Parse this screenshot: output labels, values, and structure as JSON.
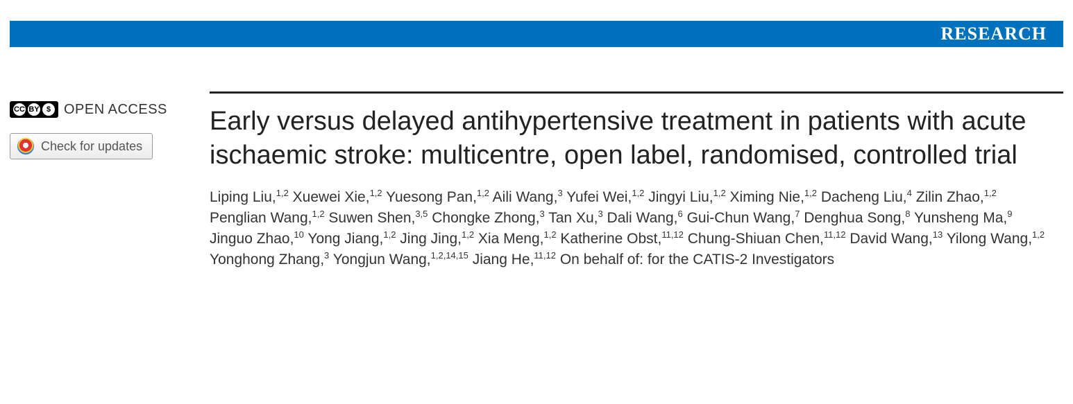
{
  "banner": {
    "label": "RESEARCH",
    "bg": "#0071bc",
    "fg": "#ffffff"
  },
  "badges": {
    "open_access_label": "OPEN ACCESS",
    "updates_label": "Check for updates"
  },
  "article": {
    "title": "Early versus delayed antihypertensive treatment in patients with acute ischaemic stroke: multicentre, open label, randomised, controlled trial",
    "authors_suffix": "On behalf of: for the CATIS-2 Investigators",
    "authors": [
      {
        "name": "Liping Liu",
        "aff": "1,2"
      },
      {
        "name": "Xuewei Xie",
        "aff": "1,2"
      },
      {
        "name": "Yuesong Pan",
        "aff": "1,2"
      },
      {
        "name": "Aili Wang",
        "aff": "3"
      },
      {
        "name": "Yufei Wei",
        "aff": "1,2"
      },
      {
        "name": "Jingyi Liu",
        "aff": "1,2"
      },
      {
        "name": "Ximing Nie",
        "aff": "1,2"
      },
      {
        "name": "Dacheng Liu",
        "aff": "4"
      },
      {
        "name": "Zilin Zhao",
        "aff": "1,2"
      },
      {
        "name": "Penglian Wang",
        "aff": "1,2"
      },
      {
        "name": "Suwen Shen",
        "aff": "3,5"
      },
      {
        "name": "Chongke Zhong",
        "aff": "3"
      },
      {
        "name": "Tan Xu",
        "aff": "3"
      },
      {
        "name": "Dali Wang",
        "aff": "6"
      },
      {
        "name": "Gui-Chun Wang",
        "aff": "7"
      },
      {
        "name": "Denghua Song",
        "aff": "8"
      },
      {
        "name": "Yunsheng Ma",
        "aff": "9"
      },
      {
        "name": "Jinguo Zhao",
        "aff": "10"
      },
      {
        "name": "Yong Jiang",
        "aff": "1,2"
      },
      {
        "name": "Jing Jing",
        "aff": "1,2"
      },
      {
        "name": "Xia Meng",
        "aff": "1,2"
      },
      {
        "name": "Katherine Obst",
        "aff": "11,12"
      },
      {
        "name": "Chung-Shiuan Chen",
        "aff": "11,12"
      },
      {
        "name": "David Wang",
        "aff": "13"
      },
      {
        "name": "Yilong Wang",
        "aff": "1,2"
      },
      {
        "name": "Yonghong Zhang",
        "aff": "3"
      },
      {
        "name": "Yongjun Wang",
        "aff": "1,2,14,15"
      },
      {
        "name": "Jiang He",
        "aff": "11,12"
      }
    ]
  }
}
